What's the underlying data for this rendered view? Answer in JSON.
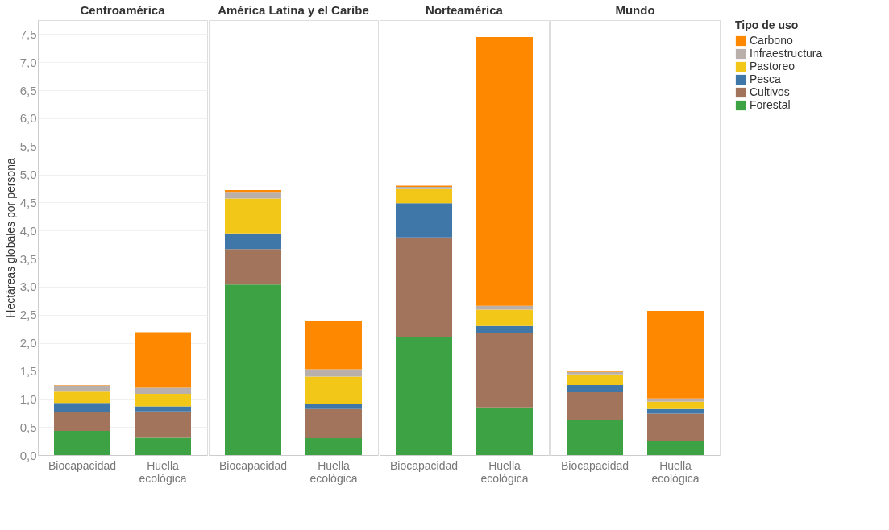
{
  "chart_data": [
    {
      "type": "bar",
      "stacked": true,
      "title": "Centroamérica",
      "ylabel": "Hectáreas globales por persona",
      "categories": [
        "Biocapacidad",
        "Huella ecológica"
      ],
      "ylim": [
        0,
        7.75
      ],
      "yticks": [
        {
          "value": 0,
          "label": "0,0"
        },
        {
          "value": 0.5,
          "label": "0,5"
        },
        {
          "value": 1,
          "label": "1,0"
        },
        {
          "value": 1.5,
          "label": "1,5"
        },
        {
          "value": 2,
          "label": "2,0"
        },
        {
          "value": 2.5,
          "label": "2,5"
        },
        {
          "value": 3,
          "label": "3,0"
        },
        {
          "value": 3.5,
          "label": "3,5"
        },
        {
          "value": 4,
          "label": "4,0"
        },
        {
          "value": 4.5,
          "label": "4,5"
        },
        {
          "value": 5,
          "label": "5,0"
        },
        {
          "value": 5.5,
          "label": "5,5"
        },
        {
          "value": 6,
          "label": "6,0"
        },
        {
          "value": 6.5,
          "label": "6,5"
        },
        {
          "value": 7,
          "label": "7,0"
        },
        {
          "value": 7.5,
          "label": "7,5"
        }
      ],
      "grid": "y",
      "legend": "right",
      "legend_title": "Tipo de uso",
      "series": [
        {
          "name": "Forestal",
          "color": "#3ca244",
          "values": [
            0.43,
            0.31
          ]
        },
        {
          "name": "Cultivos",
          "color": "#a3745c",
          "values": [
            0.34,
            0.47
          ]
        },
        {
          "name": "Pesca",
          "color": "#3f77a8",
          "values": [
            0.16,
            0.09
          ]
        },
        {
          "name": "Pastoreo",
          "color": "#f2c718",
          "values": [
            0.2,
            0.22
          ]
        },
        {
          "name": "Infraestructura",
          "color": "#bab0ab",
          "values": [
            0.11,
            0.11
          ]
        },
        {
          "name": "Carbono",
          "color": "#fe8800",
          "values": [
            0.01,
            0.99
          ]
        }
      ]
    },
    {
      "type": "bar",
      "stacked": true,
      "title": "América Latina y el Caribe",
      "categories": [
        "Biocapacidad",
        "Huella ecológica"
      ],
      "ylim": [
        0,
        7.75
      ],
      "tick_labels": "x",
      "grid": "y",
      "legend": false,
      "series": [
        {
          "name": "Forestal",
          "color": "#3ca244",
          "values": [
            3.04,
            0.3
          ]
        },
        {
          "name": "Cultivos",
          "color": "#a3745c",
          "values": [
            0.63,
            0.52
          ]
        },
        {
          "name": "Pesca",
          "color": "#3f77a8",
          "values": [
            0.28,
            0.09
          ]
        },
        {
          "name": "Pastoreo",
          "color": "#f2c718",
          "values": [
            0.62,
            0.49
          ]
        },
        {
          "name": "Infraestructura",
          "color": "#bab0ab",
          "values": [
            0.12,
            0.13
          ]
        },
        {
          "name": "Carbono",
          "color": "#fe8800",
          "values": [
            0.03,
            0.86
          ]
        }
      ]
    },
    {
      "type": "bar",
      "stacked": true,
      "title": "Norteamérica",
      "categories": [
        "Biocapacidad",
        "Huella ecológica"
      ],
      "ylim": [
        0,
        7.75
      ],
      "tick_labels": "x",
      "grid": "y",
      "legend": false,
      "series": [
        {
          "name": "Forestal",
          "color": "#3ca244",
          "values": [
            2.1,
            0.85
          ]
        },
        {
          "name": "Cultivos",
          "color": "#a3745c",
          "values": [
            1.78,
            1.33
          ]
        },
        {
          "name": "Pesca",
          "color": "#3f77a8",
          "values": [
            0.61,
            0.12
          ]
        },
        {
          "name": "Pastoreo",
          "color": "#f2c718",
          "values": [
            0.25,
            0.29
          ]
        },
        {
          "name": "Infraestructura",
          "color": "#bab0ab",
          "values": [
            0.04,
            0.07
          ]
        },
        {
          "name": "Carbono",
          "color": "#fe8800",
          "values": [
            0.02,
            4.79
          ]
        }
      ]
    },
    {
      "type": "bar",
      "stacked": true,
      "title": "Mundo",
      "categories": [
        "Biocapacidad",
        "Huella ecológica"
      ],
      "ylim": [
        0,
        7.75
      ],
      "tick_labels": "x",
      "grid": "y",
      "legend": false,
      "series": [
        {
          "name": "Forestal",
          "color": "#3ca244",
          "values": [
            0.63,
            0.26
          ]
        },
        {
          "name": "Cultivos",
          "color": "#a3745c",
          "values": [
            0.49,
            0.48
          ]
        },
        {
          "name": "Pesca",
          "color": "#3f77a8",
          "values": [
            0.13,
            0.08
          ]
        },
        {
          "name": "Pastoreo",
          "color": "#f2c718",
          "values": [
            0.19,
            0.13
          ]
        },
        {
          "name": "Infraestructura",
          "color": "#bab0ab",
          "values": [
            0.04,
            0.06
          ]
        },
        {
          "name": "Carbono",
          "color": "#fe8800",
          "values": [
            0.01,
            1.56
          ]
        }
      ]
    }
  ]
}
